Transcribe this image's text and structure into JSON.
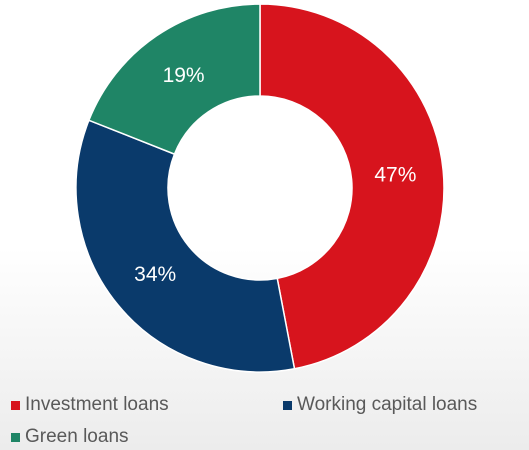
{
  "chart_data": {
    "type": "pie",
    "variant": "donut",
    "categories": [
      "Investment loans",
      "Working capital loans",
      "Green loans"
    ],
    "values": [
      47,
      34,
      19
    ],
    "value_labels": [
      "47%",
      "34%",
      "19%"
    ],
    "unit": "%",
    "colors": [
      "#d7141d",
      "#0a3a6b",
      "#1f8566"
    ],
    "slice_border_color": "#ffffff",
    "start_angle_deg": 0,
    "direction": "clockwise",
    "legend": {
      "placement": "bottom",
      "entries": [
        "Investment loans",
        "Working capital loans",
        "Green loans"
      ]
    }
  }
}
